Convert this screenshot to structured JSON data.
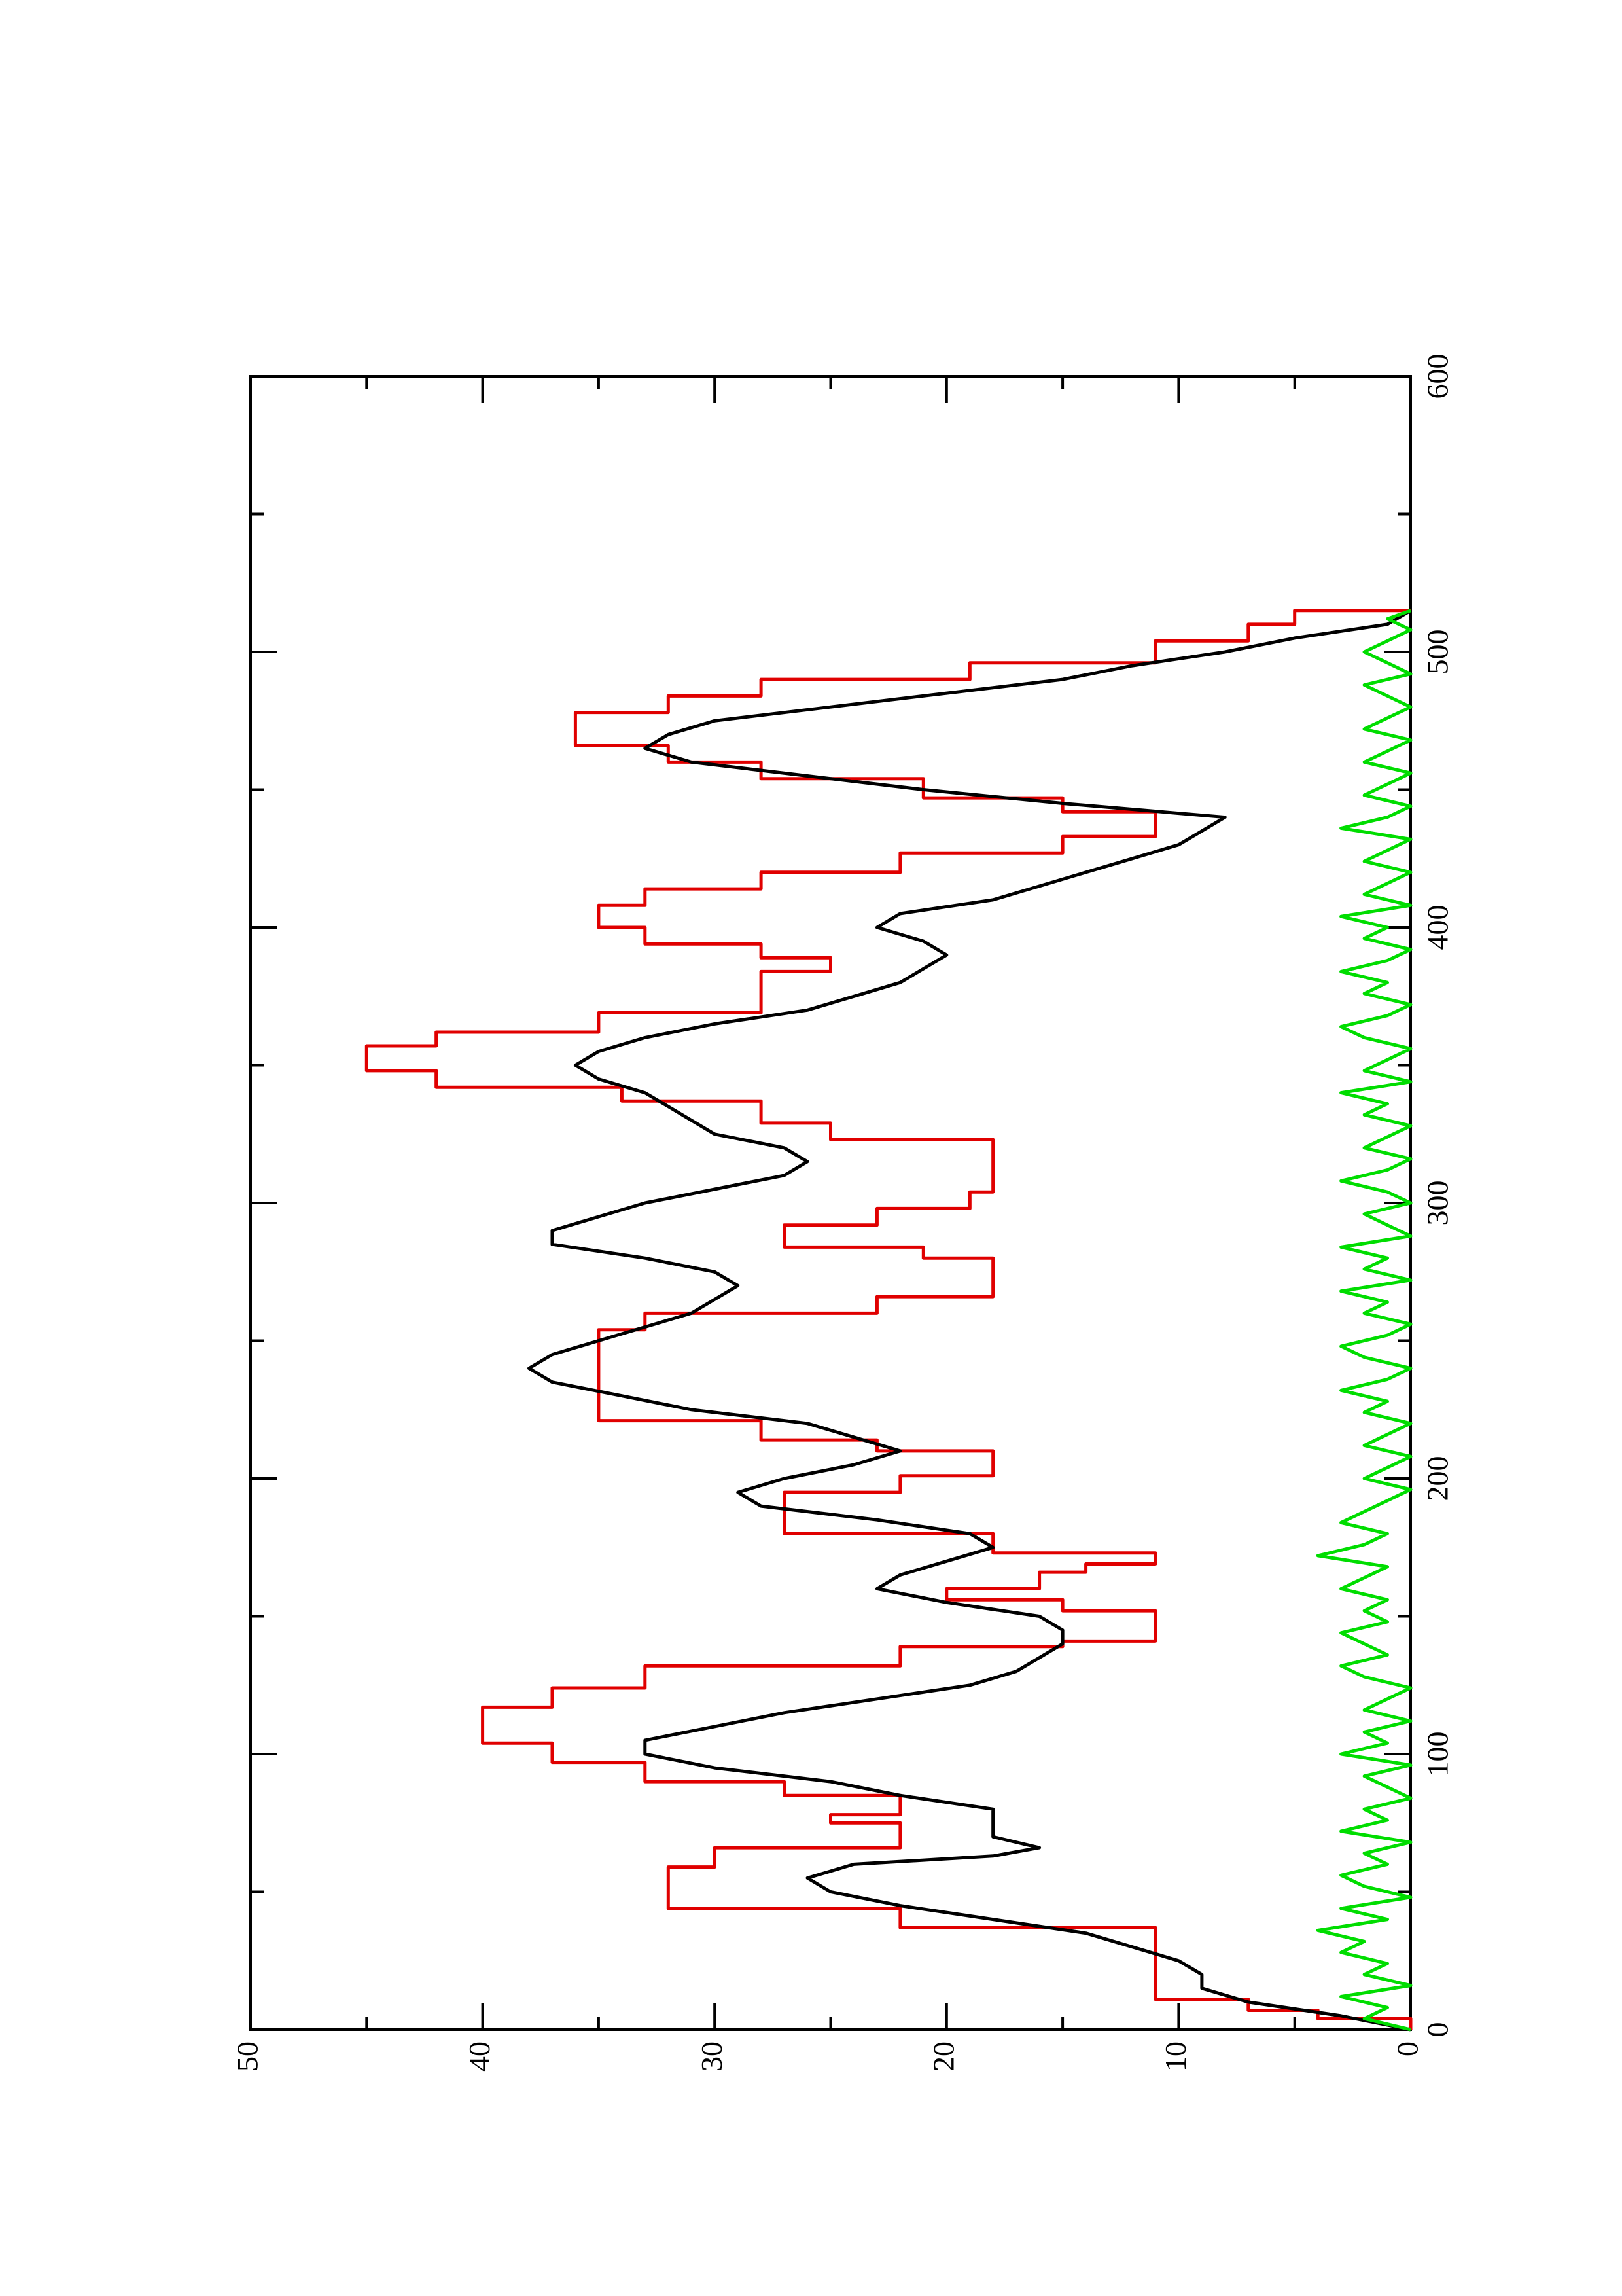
{
  "chart_data": {
    "type": "line",
    "orientation": "rotated-90-ccw",
    "title": "",
    "xlabel": "",
    "ylabel": "",
    "xlim": [
      0,
      600
    ],
    "ylim": [
      0,
      50
    ],
    "x_major_ticks": [
      0,
      100,
      200,
      300,
      400,
      500,
      600
    ],
    "x_minor_ticks": [
      50,
      150,
      250,
      350,
      450,
      550
    ],
    "y_major_ticks": [
      0,
      10,
      20,
      30,
      40,
      50
    ],
    "y_minor_ticks": [
      5,
      15,
      25,
      35,
      45
    ],
    "x_tick_labels": [
      "0",
      "100",
      "200",
      "300",
      "400",
      "500",
      "600"
    ],
    "y_tick_labels": [
      "0",
      "10",
      "20",
      "30",
      "40",
      "50"
    ],
    "grid": false,
    "series": [
      {
        "color": "#e00000",
        "step": true,
        "x": [
          0,
          4,
          7,
          11,
          30,
          37,
          44,
          52,
          59,
          66,
          72,
          75,
          78,
          85,
          90,
          97,
          104,
          110,
          117,
          124,
          132,
          139,
          141,
          147,
          152,
          156,
          160,
          166,
          169,
          173,
          180,
          187,
          195,
          201,
          205,
          210,
          214,
          221,
          228,
          233,
          248,
          254,
          260,
          266,
          272,
          280,
          284,
          288,
          292,
          298,
          304,
          316,
          323,
          329,
          337,
          342,
          348,
          353,
          357,
          362,
          369,
          374,
          379,
          384,
          389,
          394,
          400,
          408,
          414,
          420,
          427,
          433,
          437,
          442,
          447,
          454,
          460,
          466,
          472,
          478,
          484,
          490,
          496,
          504,
          510,
          515
        ],
        "y": [
          0,
          4,
          7,
          11,
          11,
          22,
          32,
          32,
          30,
          22,
          22,
          25,
          22,
          27,
          33,
          37,
          40,
          40,
          37,
          33,
          22,
          15,
          11,
          11,
          15,
          20,
          16,
          14,
          11,
          18,
          27,
          27,
          22,
          18,
          18,
          23,
          28,
          35,
          35,
          35,
          35,
          33,
          23,
          18,
          18,
          21,
          27,
          27,
          23,
          19,
          18,
          18,
          25,
          28,
          34,
          42,
          45,
          45,
          42,
          35,
          28,
          28,
          28,
          25,
          28,
          33,
          35,
          33,
          28,
          22,
          15,
          11,
          11,
          15,
          21,
          28,
          32,
          36,
          36,
          32,
          28,
          19,
          11,
          7,
          5,
          0
        ]
      },
      {
        "color": "#000000",
        "step": false,
        "x": [
          0,
          5,
          10,
          15,
          20,
          25,
          30,
          35,
          40,
          45,
          50,
          55,
          60,
          63,
          66,
          70,
          75,
          80,
          85,
          90,
          95,
          100,
          105,
          110,
          115,
          120,
          125,
          130,
          135,
          140,
          145,
          150,
          155,
          160,
          165,
          170,
          175,
          180,
          185,
          190,
          195,
          200,
          205,
          210,
          215,
          220,
          225,
          230,
          235,
          240,
          245,
          250,
          255,
          260,
          265,
          270,
          275,
          280,
          285,
          290,
          295,
          300,
          305,
          310,
          315,
          320,
          325,
          330,
          335,
          340,
          345,
          350,
          355,
          360,
          365,
          370,
          375,
          380,
          385,
          390,
          395,
          400,
          405,
          410,
          415,
          420,
          425,
          430,
          435,
          440,
          445,
          450,
          455,
          460,
          465,
          470,
          475,
          480,
          485,
          490,
          495,
          500,
          505,
          510,
          515
        ],
        "y": [
          0,
          3,
          7,
          9,
          9,
          10,
          12,
          14,
          18,
          22,
          25,
          26,
          24,
          18,
          16,
          18,
          18,
          18,
          22,
          25,
          30,
          33,
          33,
          30,
          27,
          23,
          19,
          17,
          16,
          15,
          15,
          16,
          20,
          23,
          22,
          20,
          18,
          19,
          23,
          28,
          29,
          27,
          24,
          22,
          24,
          26,
          31,
          34,
          37,
          38,
          37,
          35,
          33,
          31,
          30,
          29,
          30,
          33,
          37,
          37,
          35,
          33,
          30,
          27,
          26,
          27,
          30,
          31,
          32,
          33,
          35,
          36,
          35,
          33,
          30,
          26,
          24,
          22,
          21,
          20,
          21,
          23,
          22,
          18,
          16,
          14,
          12,
          10,
          9,
          8,
          15,
          21,
          26,
          31,
          33,
          32,
          30,
          25,
          20,
          15,
          12,
          8,
          5,
          1,
          0
        ]
      },
      {
        "color": "#00dd00",
        "step": false,
        "x": [
          0,
          4,
          8,
          12,
          16,
          20,
          24,
          28,
          32,
          36,
          40,
          44,
          48,
          52,
          56,
          60,
          64,
          68,
          72,
          76,
          80,
          84,
          88,
          92,
          96,
          100,
          104,
          108,
          112,
          116,
          120,
          124,
          128,
          132,
          136,
          140,
          144,
          148,
          152,
          156,
          160,
          164,
          168,
          172,
          176,
          180,
          184,
          188,
          192,
          196,
          200,
          204,
          208,
          212,
          216,
          220,
          224,
          228,
          232,
          236,
          240,
          244,
          248,
          252,
          256,
          260,
          264,
          268,
          272,
          276,
          280,
          284,
          288,
          292,
          296,
          300,
          304,
          308,
          312,
          316,
          320,
          324,
          328,
          332,
          336,
          340,
          344,
          348,
          352,
          356,
          360,
          364,
          368,
          372,
          376,
          380,
          384,
          388,
          392,
          396,
          400,
          404,
          408,
          412,
          416,
          420,
          424,
          428,
          432,
          436,
          440,
          444,
          448,
          452,
          456,
          460,
          464,
          468,
          472,
          476,
          480,
          484,
          488,
          492,
          496,
          500,
          504,
          508,
          512,
          515
        ],
        "y": [
          0,
          2,
          1,
          3,
          0,
          2,
          1,
          3,
          2,
          4,
          1,
          3,
          0,
          2,
          3,
          1,
          2,
          0,
          3,
          1,
          2,
          0,
          1,
          2,
          0,
          3,
          1,
          2,
          0,
          2,
          1,
          0,
          2,
          3,
          1,
          2,
          3,
          1,
          2,
          1,
          3,
          2,
          1,
          4,
          2,
          1,
          3,
          2,
          1,
          0,
          2,
          1,
          0,
          2,
          1,
          0,
          2,
          1,
          3,
          1,
          0,
          2,
          3,
          1,
          0,
          2,
          1,
          3,
          0,
          2,
          1,
          3,
          0,
          1,
          2,
          0,
          1,
          3,
          1,
          0,
          2,
          1,
          0,
          2,
          1,
          3,
          0,
          2,
          1,
          0,
          2,
          3,
          1,
          0,
          2,
          1,
          3,
          1,
          0,
          2,
          1,
          3,
          0,
          2,
          1,
          0,
          2,
          1,
          0,
          3,
          1,
          0,
          2,
          1,
          0,
          2,
          1,
          0,
          2,
          1,
          0,
          1,
          2,
          0,
          1,
          2,
          1,
          0,
          1,
          0
        ]
      }
    ]
  }
}
